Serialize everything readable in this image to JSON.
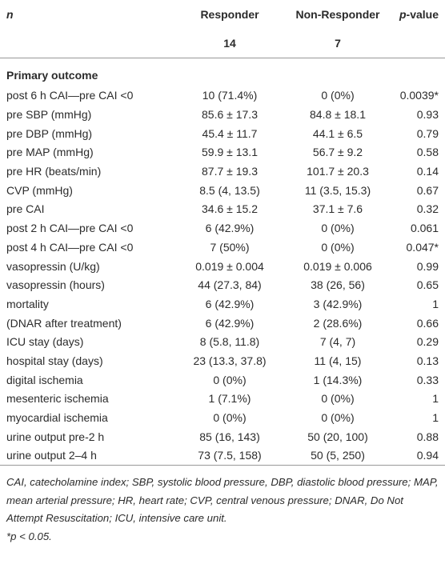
{
  "header": {
    "label": "n",
    "responder": "Responder",
    "responder_n": "14",
    "non_responder": "Non-Responder",
    "non_responder_n": "7",
    "p_value": {
      "italic": "p",
      "text": "-value"
    }
  },
  "section": "Primary outcome",
  "rows": [
    [
      "post 6 h CAI—pre CAI <0",
      "10 (71.4%)",
      "0 (0%)",
      "0.0039*"
    ],
    [
      "pre SBP (mmHg)",
      "85.6 ± 17.3",
      "84.8 ± 18.1",
      "0.93"
    ],
    [
      "pre DBP (mmHg)",
      "45.4 ± 11.7",
      "44.1 ± 6.5",
      "0.79"
    ],
    [
      "pre MAP (mmHg)",
      "59.9 ± 13.1",
      "56.7 ± 9.2",
      "0.58"
    ],
    [
      "pre HR (beats/min)",
      "87.7 ± 19.3",
      "101.7 ± 20.3",
      "0.14"
    ],
    [
      "CVP (mmHg)",
      "8.5 (4, 13.5)",
      "11 (3.5, 15.3)",
      "0.67"
    ],
    [
      "pre CAI",
      "34.6 ± 15.2",
      "37.1 ± 7.6",
      "0.32"
    ],
    [
      "post 2 h CAI—pre CAI <0",
      "6 (42.9%)",
      "0 (0%)",
      "0.061"
    ],
    [
      "post 4 h CAI—pre CAI <0",
      "7 (50%)",
      "0 (0%)",
      "0.047*"
    ],
    [
      "vasopressin (U/kg)",
      "0.019 ± 0.004",
      "0.019 ± 0.006",
      "0.99"
    ],
    [
      "vasopressin (hours)",
      "44 (27.3, 84)",
      "38 (26, 56)",
      "0.65"
    ],
    [
      "mortality",
      "6 (42.9%)",
      "3 (42.9%)",
      "1"
    ],
    [
      "(DNAR after treatment)",
      "6 (42.9%)",
      "2 (28.6%)",
      "0.66"
    ],
    [
      "ICU stay (days)",
      "8 (5.8, 11.8)",
      "7 (4, 7)",
      "0.29"
    ],
    [
      "hospital stay (days)",
      "23 (13.3, 37.8)",
      "11 (4, 15)",
      "0.13"
    ],
    [
      "digital ischemia",
      "0 (0%)",
      "1 (14.3%)",
      "0.33"
    ],
    [
      "mesenteric ischemia",
      "1 (7.1%)",
      "0 (0%)",
      "1"
    ],
    [
      "myocardial ischemia",
      "0 (0%)",
      "0 (0%)",
      "1"
    ],
    [
      "urine output pre-2 h",
      "85 (16, 143)",
      "50 (20, 100)",
      "0.88"
    ],
    [
      "urine output 2–4 h",
      "73 (7.5, 158)",
      "50 (5, 250)",
      "0.94"
    ]
  ],
  "footnote": [
    "CAI, catecholamine index; SBP, systolic blood pressure, DBP, diastolic blood pressure; MAP, mean arterial pressure; HR, heart rate; CVP, central venous pressure; DNAR, Do Not Attempt Resuscitation; ICU, intensive care unit.",
    "*p < 0.05."
  ]
}
